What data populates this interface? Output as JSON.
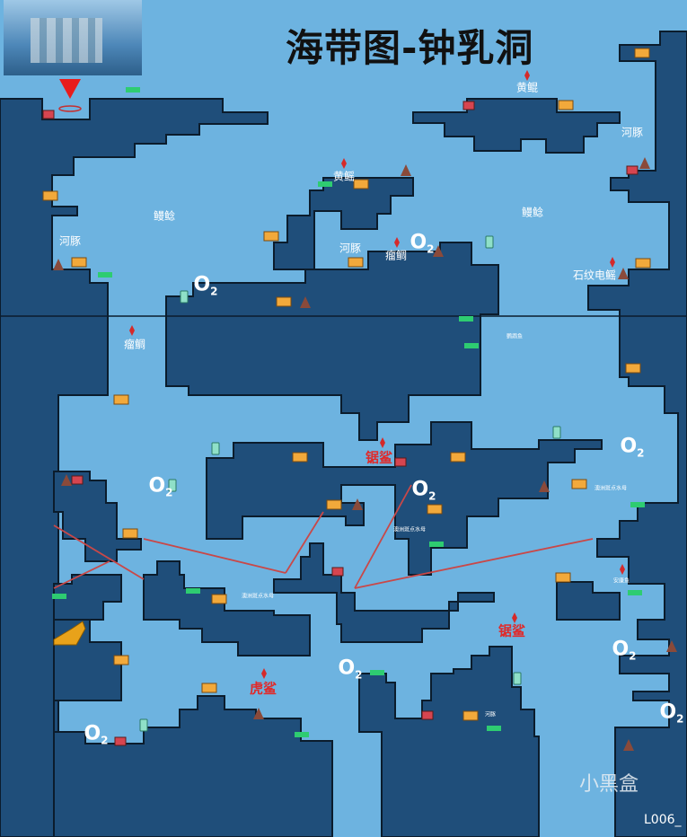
{
  "title": "海带图-钟乳洞",
  "colors": {
    "water": "#6db3e0",
    "rock": "#1f4e7a",
    "outline": "#0b1c2c",
    "enemy": "#e02a2a",
    "chest": "#d64550",
    "supply": "#f2a93b",
    "plant": "#2ecc71",
    "oxygen": "#ffffff"
  },
  "labels": [
    "河豚",
    "鳗鲶",
    "黄鳐",
    "河豚",
    "瘤鲷",
    "黄鲲",
    "河豚",
    "鳗鲶",
    "石纹电鳐",
    "瘤鲷",
    "鹦鹉鱼",
    "澳洲斑点水母",
    "澳洲斑点水母",
    "澳洲斑点水母",
    "安康鱼",
    "河豚"
  ],
  "danger_labels": [
    "锯鲨",
    "锯鲨",
    "虎鲨"
  ],
  "oxygen": {
    "main": "O",
    "sub": "2"
  },
  "icons": [
    "red-diamond-icon",
    "treasure-chest-icon",
    "supply-box-icon",
    "seaweed-tag-icon",
    "radio-icon",
    "rock-spike-icon",
    "route-arrow-icon",
    "entrance-marker-icon"
  ],
  "watermark": "小黑盒",
  "code": "L006_"
}
